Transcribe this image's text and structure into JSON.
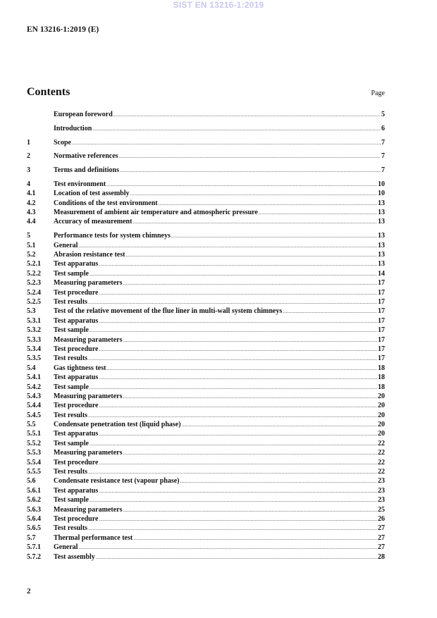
{
  "watermark": "SIST EN 13216-1:2019",
  "header": {
    "doc_id": "EN 13216-1:2019 (E)"
  },
  "contents": {
    "title": "Contents",
    "page_label": "Page",
    "groups": [
      [
        {
          "num": "",
          "title": "European foreword",
          "page": "5"
        }
      ],
      [
        {
          "num": "",
          "title": "Introduction",
          "page": "6"
        }
      ],
      [
        {
          "num": "1",
          "title": "Scope",
          "page": "7"
        }
      ],
      [
        {
          "num": "2",
          "title": "Normative references",
          "page": "7"
        }
      ],
      [
        {
          "num": "3",
          "title": "Terms and definitions",
          "page": "7"
        }
      ],
      [
        {
          "num": "4",
          "title": "Test environment",
          "page": "10"
        },
        {
          "num": "4.1",
          "title": "Location of test assembly",
          "page": "10"
        },
        {
          "num": "4.2",
          "title": "Conditions of the test environment",
          "page": "13"
        },
        {
          "num": "4.3",
          "title": "Measurement of ambient air temperature and atmospheric pressure",
          "page": "13"
        },
        {
          "num": "4.4",
          "title": "Accuracy of measurement",
          "page": "13"
        }
      ],
      [
        {
          "num": "5",
          "title": "Performance tests for system chimneys",
          "page": "13"
        },
        {
          "num": "5.1",
          "title": "General",
          "page": "13"
        },
        {
          "num": "5.2",
          "title": "Abrasion resistance test",
          "page": "13"
        },
        {
          "num": "5.2.1",
          "title": "Test apparatus",
          "page": "13"
        },
        {
          "num": "5.2.2",
          "title": "Test sample",
          "page": "14"
        },
        {
          "num": "5.2.3",
          "title": "Measuring parameters",
          "page": "17"
        },
        {
          "num": "5.2.4",
          "title": "Test procedure",
          "page": "17"
        },
        {
          "num": "5.2.5",
          "title": "Test results",
          "page": "17"
        },
        {
          "num": "5.3",
          "title": "Test of the relative movement of the flue liner in multi-wall system chimneys",
          "page": "17"
        },
        {
          "num": "5.3.1",
          "title": "Test apparatus",
          "page": "17"
        },
        {
          "num": "5.3.2",
          "title": "Test sample",
          "page": "17"
        },
        {
          "num": "5.3.3",
          "title": "Measuring parameters",
          "page": "17"
        },
        {
          "num": "5.3.4",
          "title": "Test procedure",
          "page": "17"
        },
        {
          "num": "5.3.5",
          "title": "Test results",
          "page": "17"
        },
        {
          "num": "5.4",
          "title": "Gas tightness test",
          "page": "18"
        },
        {
          "num": "5.4.1",
          "title": "Test apparatus",
          "page": "18"
        },
        {
          "num": "5.4.2",
          "title": "Test sample",
          "page": "18"
        },
        {
          "num": "5.4.3",
          "title": "Measuring parameters",
          "page": "20"
        },
        {
          "num": "5.4.4",
          "title": "Test procedure",
          "page": "20"
        },
        {
          "num": "5.4.5",
          "title": "Test results",
          "page": "20"
        },
        {
          "num": "5.5",
          "title": "Condensate penetration test (liquid phase)",
          "page": "20"
        },
        {
          "num": "5.5.1",
          "title": "Test apparatus",
          "page": "20"
        },
        {
          "num": "5.5.2",
          "title": "Test sample",
          "page": "22"
        },
        {
          "num": "5.5.3",
          "title": "Measuring parameters",
          "page": "22"
        },
        {
          "num": "5.5.4",
          "title": "Test procedure",
          "page": "22"
        },
        {
          "num": "5.5.5",
          "title": "Test results",
          "page": "22"
        },
        {
          "num": "5.6",
          "title": "Condensate resistance test (vapour phase)",
          "page": "23"
        },
        {
          "num": "5.6.1",
          "title": "Test apparatus",
          "page": "23"
        },
        {
          "num": "5.6.2",
          "title": "Test sample",
          "page": "23"
        },
        {
          "num": "5.6.3",
          "title": "Measuring parameters",
          "page": "25"
        },
        {
          "num": "5.6.4",
          "title": "Test procedure",
          "page": "26"
        },
        {
          "num": "5.6.5",
          "title": "Test results",
          "page": "27"
        },
        {
          "num": "5.7",
          "title": "Thermal performance test",
          "page": "27"
        },
        {
          "num": "5.7.1",
          "title": "General",
          "page": "27"
        },
        {
          "num": "5.7.2",
          "title": "Test assembly",
          "page": "28"
        }
      ]
    ]
  },
  "footer": {
    "page_number": "2"
  }
}
